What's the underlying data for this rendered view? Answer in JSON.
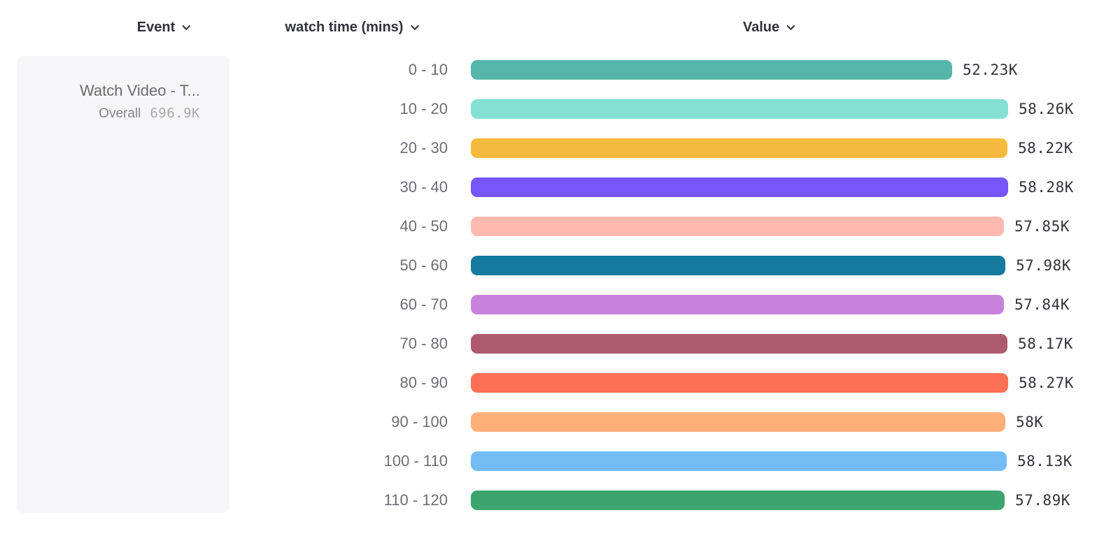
{
  "columns": {
    "event": {
      "label": "Event"
    },
    "breakdown": {
      "label": "watch time (mins)"
    },
    "value": {
      "label": "Value"
    }
  },
  "event_card": {
    "title": "Watch Video - T...",
    "overall_label": "Overall",
    "overall_value": "696.9K"
  },
  "chart_data": {
    "type": "bar",
    "orientation": "horizontal",
    "title": "",
    "xlabel": "Value",
    "ylabel": "watch time (mins)",
    "series_event": "Watch Video - T...",
    "overall_total": 696900,
    "categories": [
      "0 - 10",
      "10 - 20",
      "20 - 30",
      "30 - 40",
      "40 - 50",
      "50 - 60",
      "60 - 70",
      "70 - 80",
      "80 - 90",
      "90 - 100",
      "100 - 110",
      "110 - 120"
    ],
    "values": [
      52230,
      58260,
      58220,
      58280,
      57850,
      57980,
      57840,
      58170,
      58270,
      58000,
      58130,
      57890
    ],
    "value_labels": [
      "52.23K",
      "58.26K",
      "58.22K",
      "58.28K",
      "57.85K",
      "57.98K",
      "57.84K",
      "58.17K",
      "58.27K",
      "58K",
      "58.13K",
      "57.89K"
    ],
    "bar_colors": [
      "#57B6AC",
      "#85E0D4",
      "#F6BB3C",
      "#7656F8",
      "#FDB9B0",
      "#147A9E",
      "#C783DA",
      "#AE5A6E",
      "#FC7156",
      "#FCB078",
      "#74BCF4",
      "#3CA46E"
    ],
    "xlim": [
      0,
      58280
    ],
    "grid": false,
    "legend_position": "none"
  }
}
